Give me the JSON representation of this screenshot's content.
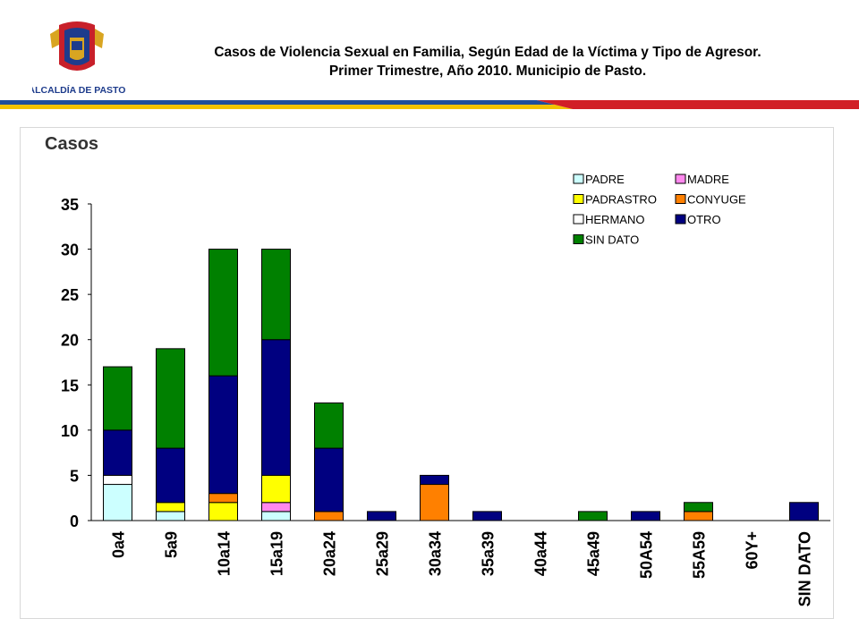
{
  "header": {
    "title_line1": "Casos de Violencia Sexual en Familia, Según Edad de la Víctima y Tipo de Agresor.",
    "title_line2": "Primer Trimestre, Año 2010. Municipio de Pasto.",
    "logo_text": "ALCALDÍA DE PASTO"
  },
  "colors": {
    "stripe_blue": "#1f4e9a",
    "stripe_yellow": "#f2c200",
    "stripe_red": "#d11f26",
    "logo_red": "#c8202a",
    "logo_blue": "#1e3c8c",
    "logo_gold": "#d9a521"
  },
  "chart_data": {
    "type": "bar",
    "stacked": true,
    "title": "Casos",
    "xlabel": "",
    "ylabel": "",
    "ylim": [
      0,
      35
    ],
    "yticks": [
      0,
      5,
      10,
      15,
      20,
      25,
      30,
      35
    ],
    "grid": false,
    "legend_position": "top-right",
    "categories": [
      "0a4",
      "5a9",
      "10a14",
      "15a19",
      "20a24",
      "25a29",
      "30a34",
      "35a39",
      "40a44",
      "45a49",
      "50A54",
      "55A59",
      "60Y+",
      "SIN DATO"
    ],
    "series": [
      {
        "name": "PADRE",
        "color": "#ccffff",
        "values": [
          4,
          1,
          0,
          1,
          0,
          0,
          0,
          0,
          0,
          0,
          0,
          0,
          0,
          0
        ]
      },
      {
        "name": "HERMANO",
        "color": "#ffffff",
        "values": [
          1,
          0,
          0,
          0,
          0,
          0,
          0,
          0,
          0,
          0,
          0,
          0,
          0,
          0
        ]
      },
      {
        "name": "MADRE",
        "color": "#ff88ee",
        "values": [
          0,
          0,
          0,
          1,
          0,
          0,
          0,
          0,
          0,
          0,
          0,
          0,
          0,
          0
        ]
      },
      {
        "name": "PADRASTRO",
        "color": "#ffff00",
        "values": [
          0,
          1,
          2,
          3,
          0,
          0,
          0,
          0,
          0,
          0,
          0,
          0,
          0,
          0
        ]
      },
      {
        "name": "CONYUGE",
        "color": "#ff8000",
        "values": [
          0,
          0,
          1,
          0,
          1,
          0,
          4,
          0,
          0,
          0,
          0,
          1,
          0,
          0
        ]
      },
      {
        "name": "OTRO",
        "color": "#000080",
        "values": [
          5,
          6,
          13,
          15,
          7,
          1,
          1,
          1,
          0,
          0,
          1,
          0,
          0,
          2
        ]
      },
      {
        "name": "SIN DATO",
        "color": "#008000",
        "values": [
          7,
          11,
          14,
          10,
          5,
          0,
          0,
          0,
          0,
          1,
          0,
          1,
          0,
          0
        ]
      }
    ],
    "legend_order": [
      "PADRE",
      "MADRE",
      "PADRASTRO",
      "CONYUGE",
      "HERMANO",
      "OTRO",
      "SIN DATO"
    ]
  }
}
